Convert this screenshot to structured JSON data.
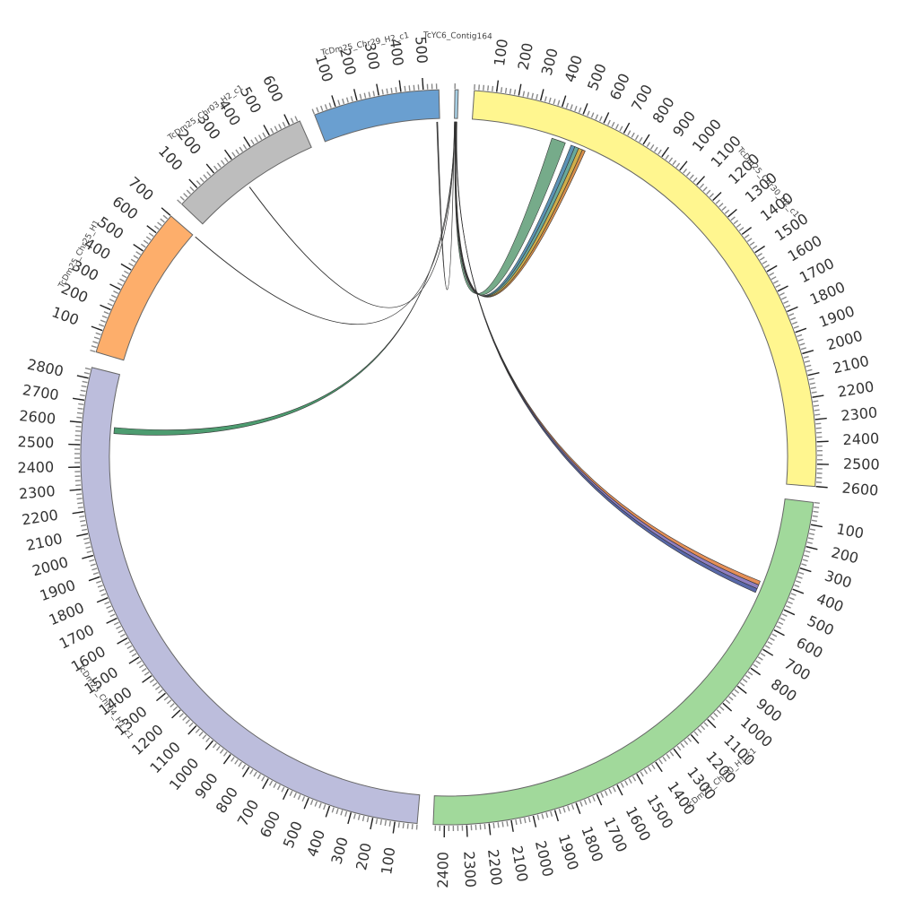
{
  "chart_data": {
    "type": "chord",
    "segments": [
      {
        "id": "ctg",
        "name": "TcYC6_Contig164",
        "length": 15,
        "color": "#A6CEE3",
        "tick_step": 100
      },
      {
        "id": "c30h2",
        "name": "TcDm25_Chr30_H2_c1",
        "length": 2600,
        "color": "#FFF68F",
        "tick_step": 100
      },
      {
        "id": "c30h1",
        "name": "TcDm25_Chr30_H1_c1",
        "length": 2450,
        "color": "#A1D99B",
        "tick_step": 100
      },
      {
        "id": "c04h1",
        "name": "TcDm25_Chr04_H1_c1",
        "length": 2850,
        "color": "#BCBDDC",
        "tick_step": 100
      },
      {
        "id": "c25h1",
        "name": "TcDm25_Chr25_H1",
        "length": 700,
        "color": "#FDAE6B",
        "tick_step": 100
      },
      {
        "id": "c03h2",
        "name": "TcDm25_Chr03_H2_c1",
        "length": 650,
        "color": "#BDBDBD",
        "tick_step": 100
      },
      {
        "id": "c29h2",
        "name": "TcDm25_Chr29_H2_c1",
        "length": 570,
        "color": "#6A9FD0",
        "tick_step": 100
      }
    ],
    "links": [
      {
        "from": "ctg",
        "from_pos": 4,
        "to": "c30h2",
        "to_pos": [
          400,
          470
        ],
        "color": "#5E9C76"
      },
      {
        "from": "ctg",
        "from_pos": 6,
        "to": "c30h2",
        "to_pos": [
          500,
          520
        ],
        "color": "#3E7FA8"
      },
      {
        "from": "ctg",
        "from_pos": 7,
        "to": "c30h2",
        "to_pos": [
          520,
          540
        ],
        "color": "#4F9A8A"
      },
      {
        "from": "ctg",
        "from_pos": 8,
        "to": "c30h2",
        "to_pos": [
          540,
          560
        ],
        "color": "#C8A02A"
      },
      {
        "from": "ctg",
        "from_pos": 9,
        "to": "c30h2",
        "to_pos": [
          560,
          575
        ],
        "color": "#D07A2A"
      },
      {
        "from": "ctg",
        "from_pos": 10,
        "to": "c30h1",
        "to_pos": [
          420,
          440
        ],
        "color": "#E07B39"
      },
      {
        "from": "ctg",
        "from_pos": 11,
        "to": "c30h1",
        "to_pos": [
          440,
          460
        ],
        "color": "#7B68B5"
      },
      {
        "from": "ctg",
        "from_pos": 12,
        "to": "c30h1",
        "to_pos": [
          460,
          480
        ],
        "color": "#3B4D9A"
      },
      {
        "from": "ctg",
        "from_pos": 3,
        "to": "c04h1",
        "to_pos": [
          2560,
          2590
        ],
        "color": "#2E8B57"
      },
      {
        "from": "ctg",
        "from_pos": 2,
        "to": "c03h2",
        "to_pos": [
          290,
          292
        ],
        "color": "#555555"
      },
      {
        "from": "ctg",
        "from_pos": 1,
        "to": "c25h1",
        "to_pos": [
          700,
          702
        ],
        "color": "#555555"
      },
      {
        "from": "ctg",
        "from_pos": 0,
        "to": "c29h2",
        "to_pos": [
          555,
          560
        ],
        "color": "#333333"
      }
    ]
  }
}
